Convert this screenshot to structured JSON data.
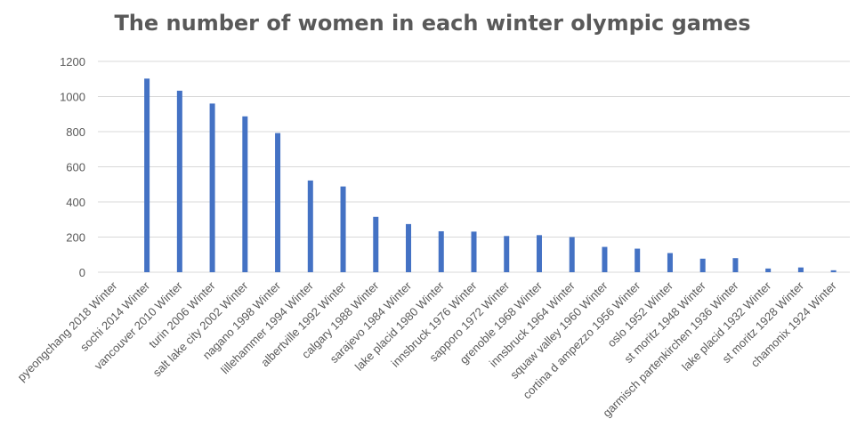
{
  "chart_data": {
    "type": "bar",
    "title": "The number of women in each winter olympic games",
    "xlabel": "",
    "ylabel": "",
    "ylim": [
      0,
      1200
    ],
    "yticks": [
      0,
      200,
      400,
      600,
      800,
      1000,
      1200
    ],
    "grid": true,
    "legend": "none",
    "bar_color": "#4472C4",
    "grid_color": "#D9D9D9",
    "categories": [
      "pyeongchang 2018 Winter",
      "sochi 2014 Winter",
      "vancouver 2010 Winter",
      "turin 2006 Winter",
      "salt lake city 2002 Winter",
      "nagano 1998 Winter",
      "lillehammer 1994 Winter",
      "albertville 1992 Winter",
      "calgary 1988 Winter",
      "sarajevo 1984 Winter",
      "lake placid 1980 Winter",
      "innsbruck 1976 Winter",
      "sapporo 1972 Winter",
      "grenoble 1968 Winter",
      "innsbruck 1964 Winter",
      "squaw valley 1960 Winter",
      "cortina d ampezzo 1956 Winter",
      "oslo 1952 Winter",
      "st moritz 1948 Winter",
      "garmisch partenkirchen 1936 Winter",
      "lake placid 1932 Winter",
      "st moritz 1928 Winter",
      "chamonix 1924 Winter"
    ],
    "values": [
      0,
      1102,
      1033,
      960,
      887,
      792,
      522,
      488,
      315,
      274,
      233,
      231,
      206,
      211,
      200,
      144,
      134,
      109,
      77,
      80,
      21,
      27,
      11
    ]
  }
}
